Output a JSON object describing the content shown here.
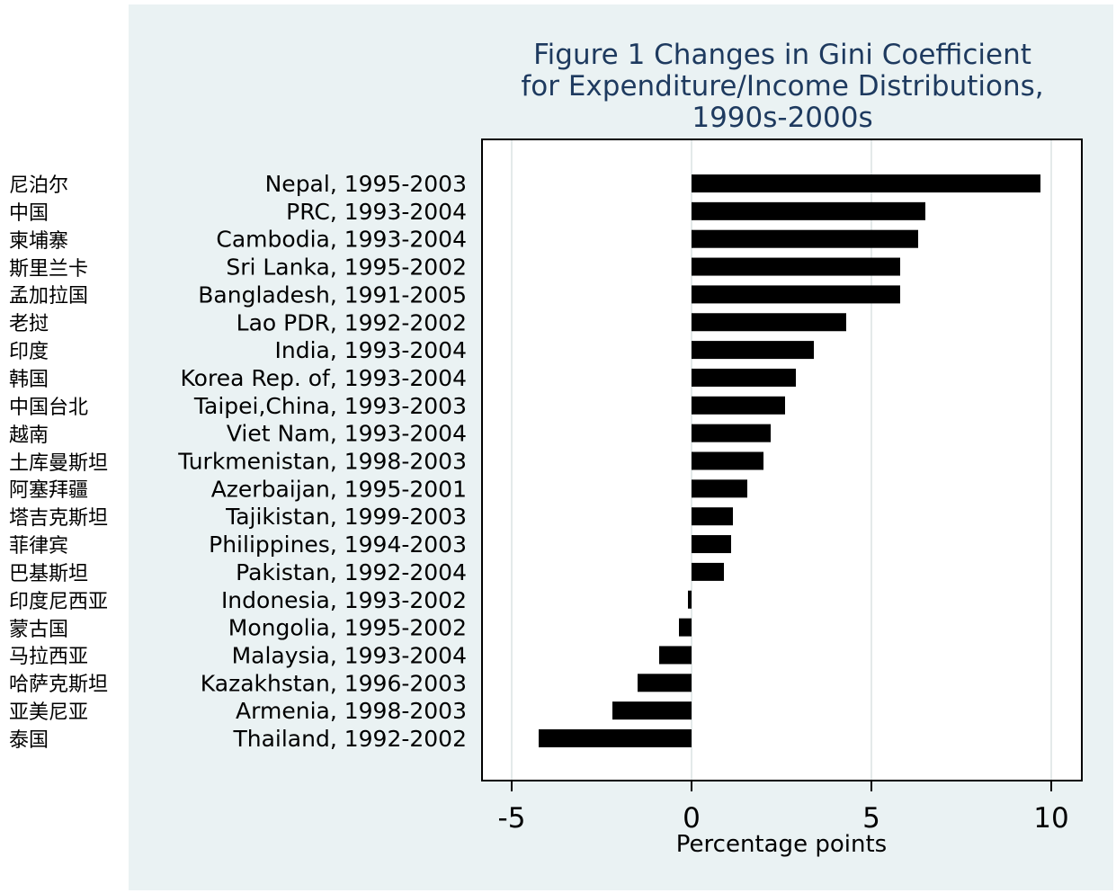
{
  "title": {
    "line1": "Figure 1  Changes in Gini Coefficient",
    "line2": "for Expenditure/Income Distributions,",
    "line3": "1990s-2000s"
  },
  "chinese_labels": [
    "尼泊尔",
    "中国",
    "柬埔寨",
    "斯里兰卡",
    "孟加拉国",
    "老挝",
    "印度",
    "韩国",
    "中国台北",
    "越南",
    "土库曼斯坦",
    "阿塞拜疆",
    "塔吉克斯坦",
    "菲律宾",
    "巴基斯坦",
    "印度尼西亚",
    "蒙古国",
    "马拉西亚",
    "哈萨克斯坦",
    "亚美尼亚",
    "泰国"
  ],
  "colors": {
    "panel_bg": "#eaf2f3",
    "title": "#1e3a5f",
    "bar": "#000000",
    "grid": "#e4eaea"
  },
  "chart_data": {
    "type": "bar",
    "orientation": "horizontal",
    "categories": [
      "Nepal, 1995-2003",
      "PRC, 1993-2004",
      "Cambodia, 1993-2004",
      "Sri Lanka, 1995-2002",
      "Bangladesh, 1991-2005",
      "Lao PDR, 1992-2002",
      "India, 1993-2004",
      "Korea Rep. of, 1993-2004",
      "Taipei,China, 1993-2003",
      "Viet Nam, 1993-2004",
      "Turkmenistan, 1998-2003",
      "Azerbaijan, 1995-2001",
      "Tajikistan, 1999-2003",
      "Philippines, 1994-2003",
      "Pakistan, 1992-2004",
      "Indonesia, 1993-2002",
      "Mongolia, 1995-2002",
      "Malaysia, 1993-2004",
      "Kazakhstan, 1996-2003",
      "Armenia, 1998-2003",
      "Thailand, 1992-2002"
    ],
    "values": [
      9.7,
      6.5,
      6.3,
      5.8,
      5.8,
      4.3,
      3.4,
      2.9,
      2.6,
      2.2,
      2.0,
      1.55,
      1.15,
      1.1,
      0.9,
      -0.1,
      -0.35,
      -0.9,
      -1.5,
      -2.2,
      -4.25
    ],
    "xlabel": "Percentage points",
    "xticks": [
      -5,
      0,
      5,
      10
    ],
    "xlim": [
      -5.8,
      10.9
    ],
    "grid": true
  }
}
